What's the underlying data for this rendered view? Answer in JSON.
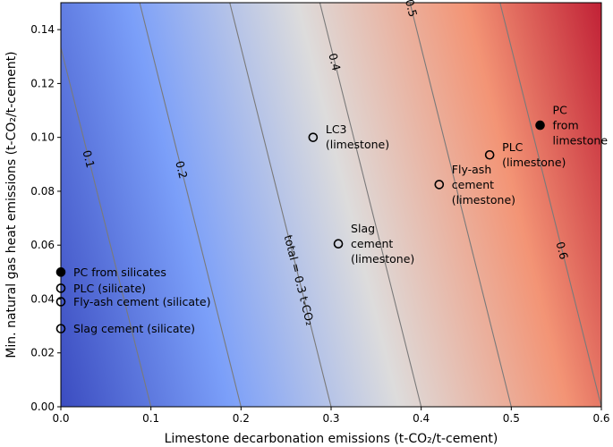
{
  "chart_data": {
    "type": "contour",
    "xlabel": "Limestone decarbonation emissions (t-CO₂/t-cement)",
    "ylabel": "Min. natural gas heat emissions (t-CO₂/t-cement)",
    "xlim": [
      0,
      0.6
    ],
    "ylim": [
      0,
      0.15
    ],
    "x_ticks": [
      "0.0",
      "0.1",
      "0.2",
      "0.3",
      "0.4",
      "0.5",
      "0.6"
    ],
    "y_ticks": [
      "0.00",
      "0.02",
      "0.04",
      "0.06",
      "0.08",
      "0.10",
      "0.12",
      "0.14"
    ],
    "colormap": {
      "low": "#3b4cc0",
      "mid": "#dddcdc",
      "high": "#b40426",
      "vmin": 0.0,
      "vmax": 0.75
    },
    "contour_color": "#7a7a7a",
    "total_formula": {
      "x_coef": 1.0,
      "y_coef": 0.75
    },
    "contours": [
      {
        "level": 0.1,
        "label": "0.1"
      },
      {
        "level": 0.2,
        "label": "0.2"
      },
      {
        "level": 0.3,
        "label": "total = 0.3 t-CO₂"
      },
      {
        "level": 0.4,
        "label": "0.4"
      },
      {
        "level": 0.5,
        "label": "0.5"
      },
      {
        "level": 0.6,
        "label": "0.6"
      }
    ],
    "points": [
      {
        "lines": [
          "PC from silicates"
        ],
        "x": 0.0,
        "y": 0.05,
        "filled": true
      },
      {
        "lines": [
          "PLC (silicate)"
        ],
        "x": 0.0,
        "y": 0.044,
        "filled": false
      },
      {
        "lines": [
          "Fly-ash cement (silicate)"
        ],
        "x": 0.0,
        "y": 0.039,
        "filled": false
      },
      {
        "lines": [
          "Slag cement (silicate)"
        ],
        "x": 0.0,
        "y": 0.029,
        "filled": false
      },
      {
        "lines": [
          "LC3",
          "(limestone)"
        ],
        "x": 0.28,
        "y": 0.1,
        "filled": false
      },
      {
        "lines": [
          "Slag",
          "cement",
          "(limestone)"
        ],
        "x": 0.308,
        "y": 0.0605,
        "filled": false
      },
      {
        "lines": [
          "Fly-ash",
          "cement",
          "(limestone)"
        ],
        "x": 0.42,
        "y": 0.0825,
        "filled": false
      },
      {
        "lines": [
          "PLC",
          "(limestone)"
        ],
        "x": 0.476,
        "y": 0.0935,
        "filled": false
      },
      {
        "lines": [
          "PC",
          "from",
          "limestone"
        ],
        "x": 0.532,
        "y": 0.1045,
        "filled": true
      }
    ]
  }
}
